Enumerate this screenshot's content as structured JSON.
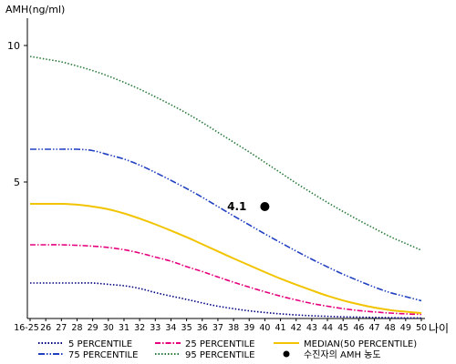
{
  "chart_data": {
    "type": "line",
    "ylabel": "AMH(ng/ml)",
    "xlabel": "나이",
    "y_ticks": [
      "10",
      "5"
    ],
    "y_tick_values": [
      10,
      5
    ],
    "ylim": [
      0,
      11
    ],
    "categories": [
      "16-25",
      "26",
      "27",
      "28",
      "29",
      "30",
      "31",
      "32",
      "33",
      "34",
      "35",
      "36",
      "37",
      "38",
      "39",
      "40",
      "41",
      "42",
      "43",
      "44",
      "45",
      "46",
      "47",
      "48",
      "49",
      "50"
    ],
    "series": [
      {
        "name": "5 PERCENTILE",
        "color": "#000080",
        "dash": "1.5,2",
        "values": [
          1.3,
          1.3,
          1.3,
          1.3,
          1.3,
          1.25,
          1.2,
          1.1,
          0.95,
          0.82,
          0.7,
          0.57,
          0.45,
          0.36,
          0.28,
          0.22,
          0.17,
          0.13,
          0.1,
          0.08,
          0.06,
          0.05,
          0.04,
          0.03,
          0.02,
          0.02
        ]
      },
      {
        "name": "25 PERCENTILE",
        "color": "#e6007e",
        "dash": "6,2,1.5,2",
        "values": [
          2.7,
          2.7,
          2.7,
          2.68,
          2.65,
          2.6,
          2.52,
          2.4,
          2.25,
          2.1,
          1.9,
          1.72,
          1.52,
          1.33,
          1.15,
          0.98,
          0.82,
          0.68,
          0.55,
          0.45,
          0.36,
          0.29,
          0.24,
          0.2,
          0.17,
          0.15
        ]
      },
      {
        "name": "MEDIAN(50 PERCENTILE)",
        "color": "#f2c400",
        "dash": "",
        "values": [
          4.2,
          4.2,
          4.2,
          4.17,
          4.1,
          4.0,
          3.85,
          3.66,
          3.45,
          3.22,
          2.98,
          2.72,
          2.46,
          2.2,
          1.95,
          1.7,
          1.46,
          1.24,
          1.03,
          0.83,
          0.66,
          0.52,
          0.4,
          0.31,
          0.25,
          0.2
        ]
      },
      {
        "name": "75 PERCENTILE",
        "color": "#2040c0",
        "dash": "7,2,1.5,2,1.5,2",
        "values": [
          6.2,
          6.2,
          6.2,
          6.2,
          6.15,
          6.0,
          5.84,
          5.62,
          5.35,
          5.06,
          4.76,
          4.44,
          4.1,
          3.76,
          3.43,
          3.1,
          2.78,
          2.47,
          2.17,
          1.89,
          1.62,
          1.38,
          1.15,
          0.95,
          0.8,
          0.65
        ]
      },
      {
        "name": "95 PERCENTILE",
        "color": "#2a7a3a",
        "dash": "1.5,2",
        "values": [
          9.6,
          9.5,
          9.4,
          9.25,
          9.08,
          8.88,
          8.65,
          8.4,
          8.12,
          7.83,
          7.52,
          7.18,
          6.82,
          6.46,
          6.1,
          5.72,
          5.34,
          4.96,
          4.6,
          4.25,
          3.92,
          3.6,
          3.3,
          3.0,
          2.75,
          2.5
        ]
      }
    ],
    "marker": {
      "x": "40",
      "y": 4.1,
      "label": "4.1"
    },
    "legend": {
      "placement": "bottom",
      "items": [
        {
          "label": "5 PERCENTILE"
        },
        {
          "label": "25 PERCENTILE"
        },
        {
          "label": "MEDIAN(50 PERCENTILE)"
        },
        {
          "label": "75 PERCENTILE"
        },
        {
          "label": "95 PERCENTILE"
        },
        {
          "label": "수진자의 AMH 농도"
        }
      ]
    },
    "grid": false
  }
}
